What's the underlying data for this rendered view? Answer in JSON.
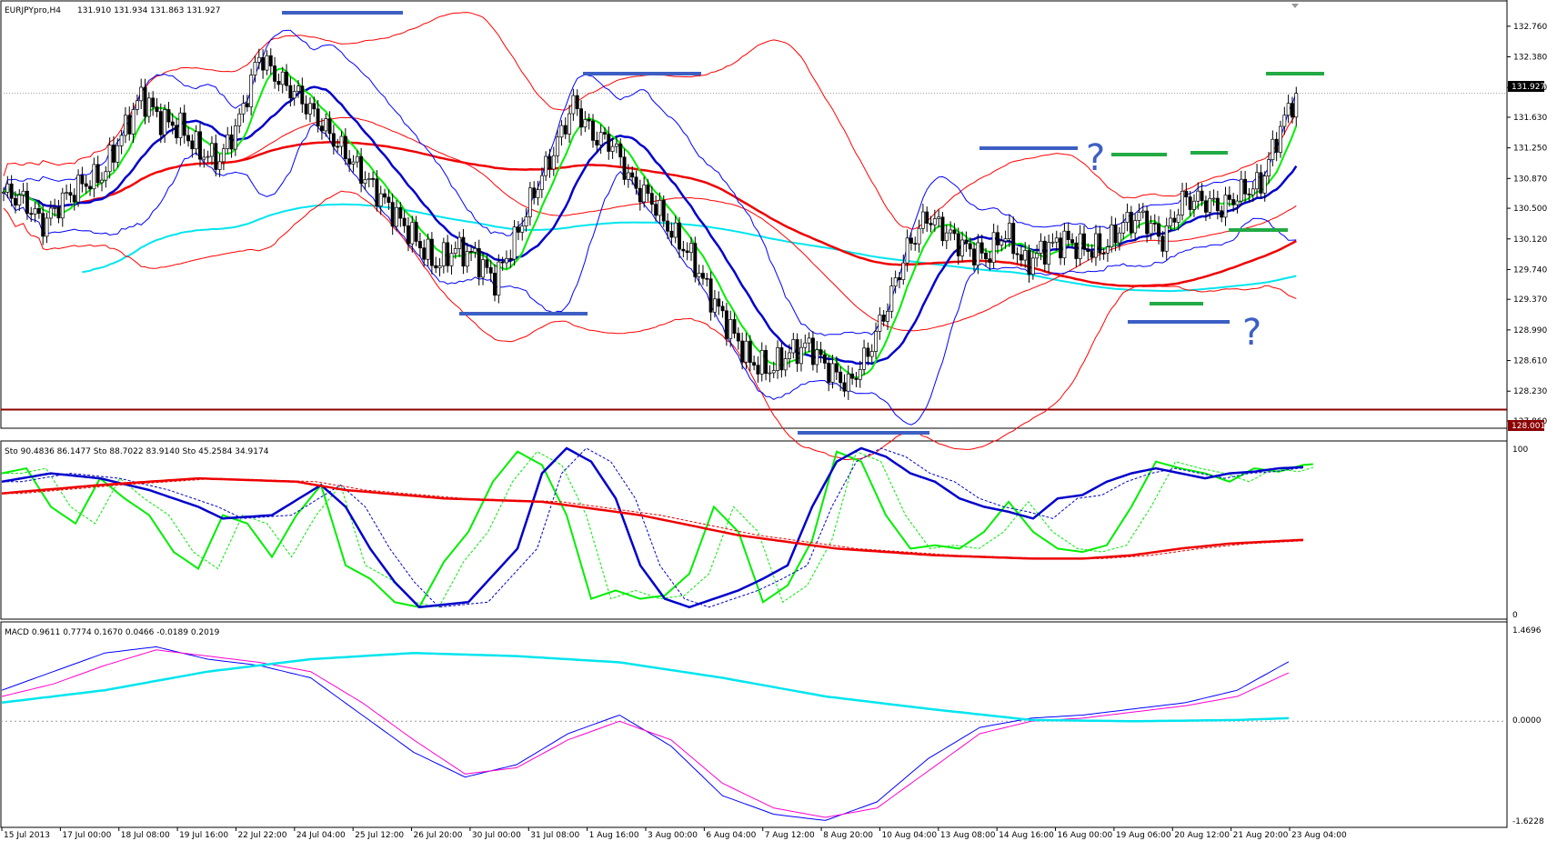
{
  "window": {
    "title": "EURJPYpro,H4",
    "ohlc": "131.910 131.934 131.863 131.927"
  },
  "price_axis": {
    "ticks": [
      "132.760",
      "132.380",
      "132.000",
      "131.630",
      "131.250",
      "130.870",
      "130.500",
      "130.120",
      "129.740",
      "129.370",
      "128.990",
      "128.610",
      "128.230",
      "127.860"
    ],
    "current_price_label": "131.927",
    "level_label": "128.001"
  },
  "stochastic_panel": {
    "title": "Sto 90.4836 86.1477  Sto 88.7022 83.9140  Sto 45.2584 34.9174",
    "max_label": "100",
    "min_label": "0"
  },
  "macd_panel": {
    "title": "MACD 0.9611 0.7774 0.1670 0.0466 -0.0189 0.2019",
    "top_label": "1.4696",
    "zero_label": "0.0000",
    "bottom_label": "-1.6228"
  },
  "time_axis": {
    "labels": [
      "15 Jul 2013",
      "17 Jul 00:00",
      "18 Jul 08:00",
      "19 Jul 16:00",
      "22 Jul 22:00",
      "24 Jul 04:00",
      "25 Jul 12:00",
      "26 Jul 20:00",
      "30 Jul 00:00",
      "31 Jul 08:00",
      "1 Aug 16:00",
      "3 Aug 00:00",
      "6 Aug 04:00",
      "7 Aug 12:00",
      "8 Aug 20:00",
      "10 Aug 04:00",
      "13 Aug 08:00",
      "14 Aug 16:00",
      "16 Aug 00:00",
      "19 Aug 06:00",
      "20 Aug 12:00",
      "21 Aug 20:00",
      "23 Aug 04:00"
    ]
  },
  "annotations": {
    "question_mark_1": "?",
    "question_mark_2": "?"
  },
  "colors": {
    "candle_bull": "#ffffff",
    "candle_bear": "#000000",
    "bollinger_inner": "#0000ff",
    "bollinger_outer": "#ff0000",
    "ma_green": "#00ee00",
    "ma_blue": "#0000cc",
    "ma_red": "#ee0000",
    "ma_cyan": "#00e5ee",
    "support_level": "#8b0000",
    "resistance_marker": "#3d5fc4",
    "target_marker": "#22aa44",
    "macd_main": "#0000ff",
    "macd_signal": "#ff00cc",
    "macd_slow": "#00e5ee"
  },
  "chart_data": [
    {
      "type": "candlestick",
      "symbol": "EURJPYpro",
      "timeframe": "H4",
      "ylim": [
        127.86,
        132.95
      ],
      "close_path": [
        [
          0,
          130.7
        ],
        [
          5,
          130.6
        ],
        [
          10,
          130.3
        ],
        [
          15,
          130.6
        ],
        [
          20,
          130.8
        ],
        [
          25,
          130.9
        ],
        [
          30,
          131.4
        ],
        [
          35,
          131.9
        ],
        [
          40,
          131.6
        ],
        [
          45,
          131.5
        ],
        [
          50,
          131.2
        ],
        [
          55,
          131.1
        ],
        [
          60,
          131.6
        ],
        [
          65,
          132.4
        ],
        [
          70,
          132.1
        ],
        [
          75,
          131.9
        ],
        [
          80,
          131.6
        ],
        [
          85,
          131.3
        ],
        [
          90,
          131.0
        ],
        [
          95,
          130.7
        ],
        [
          100,
          130.4
        ],
        [
          105,
          130.1
        ],
        [
          110,
          129.8
        ],
        [
          115,
          130.0
        ],
        [
          120,
          129.9
        ],
        [
          125,
          129.6
        ],
        [
          130,
          130.1
        ],
        [
          135,
          130.7
        ],
        [
          140,
          131.2
        ],
        [
          145,
          131.8
        ],
        [
          150,
          131.4
        ],
        [
          155,
          131.3
        ],
        [
          160,
          130.8
        ],
        [
          165,
          130.6
        ],
        [
          170,
          130.2
        ],
        [
          175,
          129.9
        ],
        [
          180,
          129.4
        ],
        [
          185,
          129.0
        ],
        [
          190,
          128.6
        ],
        [
          195,
          128.5
        ],
        [
          200,
          128.7
        ],
        [
          205,
          128.8
        ],
        [
          210,
          128.5
        ],
        [
          215,
          128.3
        ],
        [
          220,
          128.7
        ],
        [
          225,
          129.3
        ],
        [
          230,
          130.0
        ],
        [
          235,
          130.4
        ],
        [
          240,
          130.2
        ],
        [
          245,
          130.0
        ],
        [
          250,
          129.9
        ],
        [
          255,
          130.2
        ],
        [
          260,
          129.8
        ],
        [
          265,
          130.0
        ],
        [
          270,
          130.1
        ],
        [
          275,
          130.0
        ],
        [
          280,
          130.0
        ],
        [
          285,
          130.3
        ],
        [
          290,
          130.4
        ],
        [
          295,
          130.1
        ],
        [
          300,
          130.6
        ],
        [
          305,
          130.6
        ],
        [
          310,
          130.5
        ],
        [
          315,
          130.7
        ],
        [
          320,
          130.8
        ],
        [
          325,
          131.5
        ],
        [
          329,
          131.93
        ]
      ]
    },
    {
      "type": "line",
      "title": "Stochastic",
      "ylim": [
        0,
        100
      ],
      "series": [
        {
          "values": [
            [
              0,
              85
            ],
            [
              5,
              88
            ],
            [
              10,
              65
            ],
            [
              15,
              55
            ],
            [
              20,
              82
            ],
            [
              25,
              70
            ],
            [
              30,
              60
            ],
            [
              35,
              38
            ],
            [
              40,
              28
            ],
            [
              45,
              60
            ],
            [
              50,
              55
            ],
            [
              55,
              35
            ],
            [
              60,
              60
            ],
            [
              65,
              78
            ],
            [
              70,
              30
            ],
            [
              75,
              22
            ],
            [
              80,
              8
            ],
            [
              85,
              5
            ],
            [
              90,
              32
            ],
            [
              95,
              50
            ],
            [
              100,
              80
            ],
            [
              105,
              98
            ],
            [
              110,
              90
            ],
            [
              115,
              60
            ],
            [
              120,
              10
            ],
            [
              125,
              15
            ],
            [
              130,
              10
            ],
            [
              135,
              12
            ],
            [
              140,
              25
            ],
            [
              145,
              65
            ],
            [
              150,
              50
            ],
            [
              155,
              8
            ],
            [
              160,
              18
            ],
            [
              165,
              45
            ],
            [
              170,
              98
            ],
            [
              175,
              92
            ],
            [
              180,
              60
            ],
            [
              185,
              40
            ],
            [
              190,
              42
            ],
            [
              195,
              40
            ],
            [
              200,
              50
            ],
            [
              205,
              68
            ],
            [
              210,
              50
            ],
            [
              215,
              40
            ],
            [
              220,
              38
            ],
            [
              225,
              42
            ],
            [
              230,
              65
            ],
            [
              235,
              92
            ],
            [
              240,
              88
            ],
            [
              245,
              85
            ],
            [
              250,
              80
            ],
            [
              255,
              88
            ],
            [
              260,
              86
            ],
            [
              265,
              90
            ],
            [
              267,
              90.48
            ]
          ]
        },
        {
          "values": [
            [
              0,
              80
            ],
            [
              10,
              85
            ],
            [
              20,
              82
            ],
            [
              30,
              75
            ],
            [
              40,
              65
            ],
            [
              45,
              58
            ],
            [
              55,
              60
            ],
            [
              65,
              78
            ],
            [
              70,
              65
            ],
            [
              75,
              40
            ],
            [
              80,
              20
            ],
            [
              85,
              5
            ],
            [
              95,
              8
            ],
            [
              105,
              40
            ],
            [
              110,
              85
            ],
            [
              115,
              100
            ],
            [
              120,
              92
            ],
            [
              125,
              70
            ],
            [
              130,
              30
            ],
            [
              135,
              10
            ],
            [
              140,
              5
            ],
            [
              145,
              10
            ],
            [
              150,
              15
            ],
            [
              155,
              22
            ],
            [
              160,
              30
            ],
            [
              165,
              65
            ],
            [
              170,
              92
            ],
            [
              175,
              100
            ],
            [
              180,
              95
            ],
            [
              185,
              85
            ],
            [
              190,
              80
            ],
            [
              195,
              70
            ],
            [
              200,
              65
            ],
            [
              205,
              62
            ],
            [
              210,
              58
            ],
            [
              215,
              70
            ],
            [
              220,
              72
            ],
            [
              225,
              80
            ],
            [
              230,
              85
            ],
            [
              235,
              88
            ],
            [
              240,
              85
            ],
            [
              245,
              82
            ],
            [
              250,
              85
            ],
            [
              255,
              86
            ],
            [
              260,
              88
            ],
            [
              265,
              88.7
            ]
          ]
        },
        {
          "values": [
            [
              0,
              73
            ],
            [
              20,
              78
            ],
            [
              40,
              82
            ],
            [
              60,
              80
            ],
            [
              70,
              75
            ],
            [
              90,
              70
            ],
            [
              110,
              68
            ],
            [
              130,
              60
            ],
            [
              150,
              48
            ],
            [
              170,
              40
            ],
            [
              190,
              36
            ],
            [
              210,
              34
            ],
            [
              220,
              34
            ],
            [
              230,
              36
            ],
            [
              240,
              40
            ],
            [
              250,
              43
            ],
            [
              265,
              45.26
            ]
          ]
        }
      ]
    },
    {
      "type": "line",
      "title": "MACD",
      "ylim": [
        -1.6228,
        1.4696
      ],
      "series": [
        {
          "values": [
            [
              0,
              0.5
            ],
            [
              10,
              0.8
            ],
            [
              20,
              1.1
            ],
            [
              30,
              1.2
            ],
            [
              40,
              1.0
            ],
            [
              50,
              0.9
            ],
            [
              60,
              0.7
            ],
            [
              70,
              0.1
            ],
            [
              80,
              -0.5
            ],
            [
              90,
              -0.9
            ],
            [
              100,
              -0.7
            ],
            [
              110,
              -0.2
            ],
            [
              120,
              0.1
            ],
            [
              130,
              -0.4
            ],
            [
              140,
              -1.2
            ],
            [
              150,
              -1.5
            ],
            [
              160,
              -1.6
            ],
            [
              170,
              -1.3
            ],
            [
              180,
              -0.6
            ],
            [
              190,
              -0.1
            ],
            [
              200,
              0.05
            ],
            [
              210,
              0.1
            ],
            [
              220,
              0.2
            ],
            [
              230,
              0.3
            ],
            [
              240,
              0.5
            ],
            [
              250,
              0.96
            ]
          ]
        },
        {
          "values": [
            [
              0,
              0.4
            ],
            [
              10,
              0.6
            ],
            [
              20,
              0.9
            ],
            [
              30,
              1.15
            ],
            [
              40,
              1.05
            ],
            [
              50,
              0.95
            ],
            [
              60,
              0.8
            ],
            [
              70,
              0.3
            ],
            [
              80,
              -0.3
            ],
            [
              90,
              -0.85
            ],
            [
              100,
              -0.75
            ],
            [
              110,
              -0.3
            ],
            [
              120,
              0.0
            ],
            [
              130,
              -0.3
            ],
            [
              140,
              -1.0
            ],
            [
              150,
              -1.4
            ],
            [
              160,
              -1.55
            ],
            [
              170,
              -1.4
            ],
            [
              180,
              -0.8
            ],
            [
              190,
              -0.2
            ],
            [
              200,
              0.0
            ],
            [
              210,
              0.05
            ],
            [
              220,
              0.15
            ],
            [
              230,
              0.25
            ],
            [
              240,
              0.4
            ],
            [
              250,
              0.78
            ]
          ]
        },
        {
          "values": [
            [
              0,
              0.3
            ],
            [
              20,
              0.5
            ],
            [
              40,
              0.8
            ],
            [
              60,
              1.0
            ],
            [
              80,
              1.1
            ],
            [
              100,
              1.05
            ],
            [
              120,
              0.95
            ],
            [
              140,
              0.7
            ],
            [
              160,
              0.4
            ],
            [
              180,
              0.2
            ],
            [
              200,
              0.02
            ],
            [
              220,
              0.0
            ],
            [
              240,
              0.02
            ],
            [
              250,
              0.05
            ]
          ]
        }
      ]
    }
  ]
}
